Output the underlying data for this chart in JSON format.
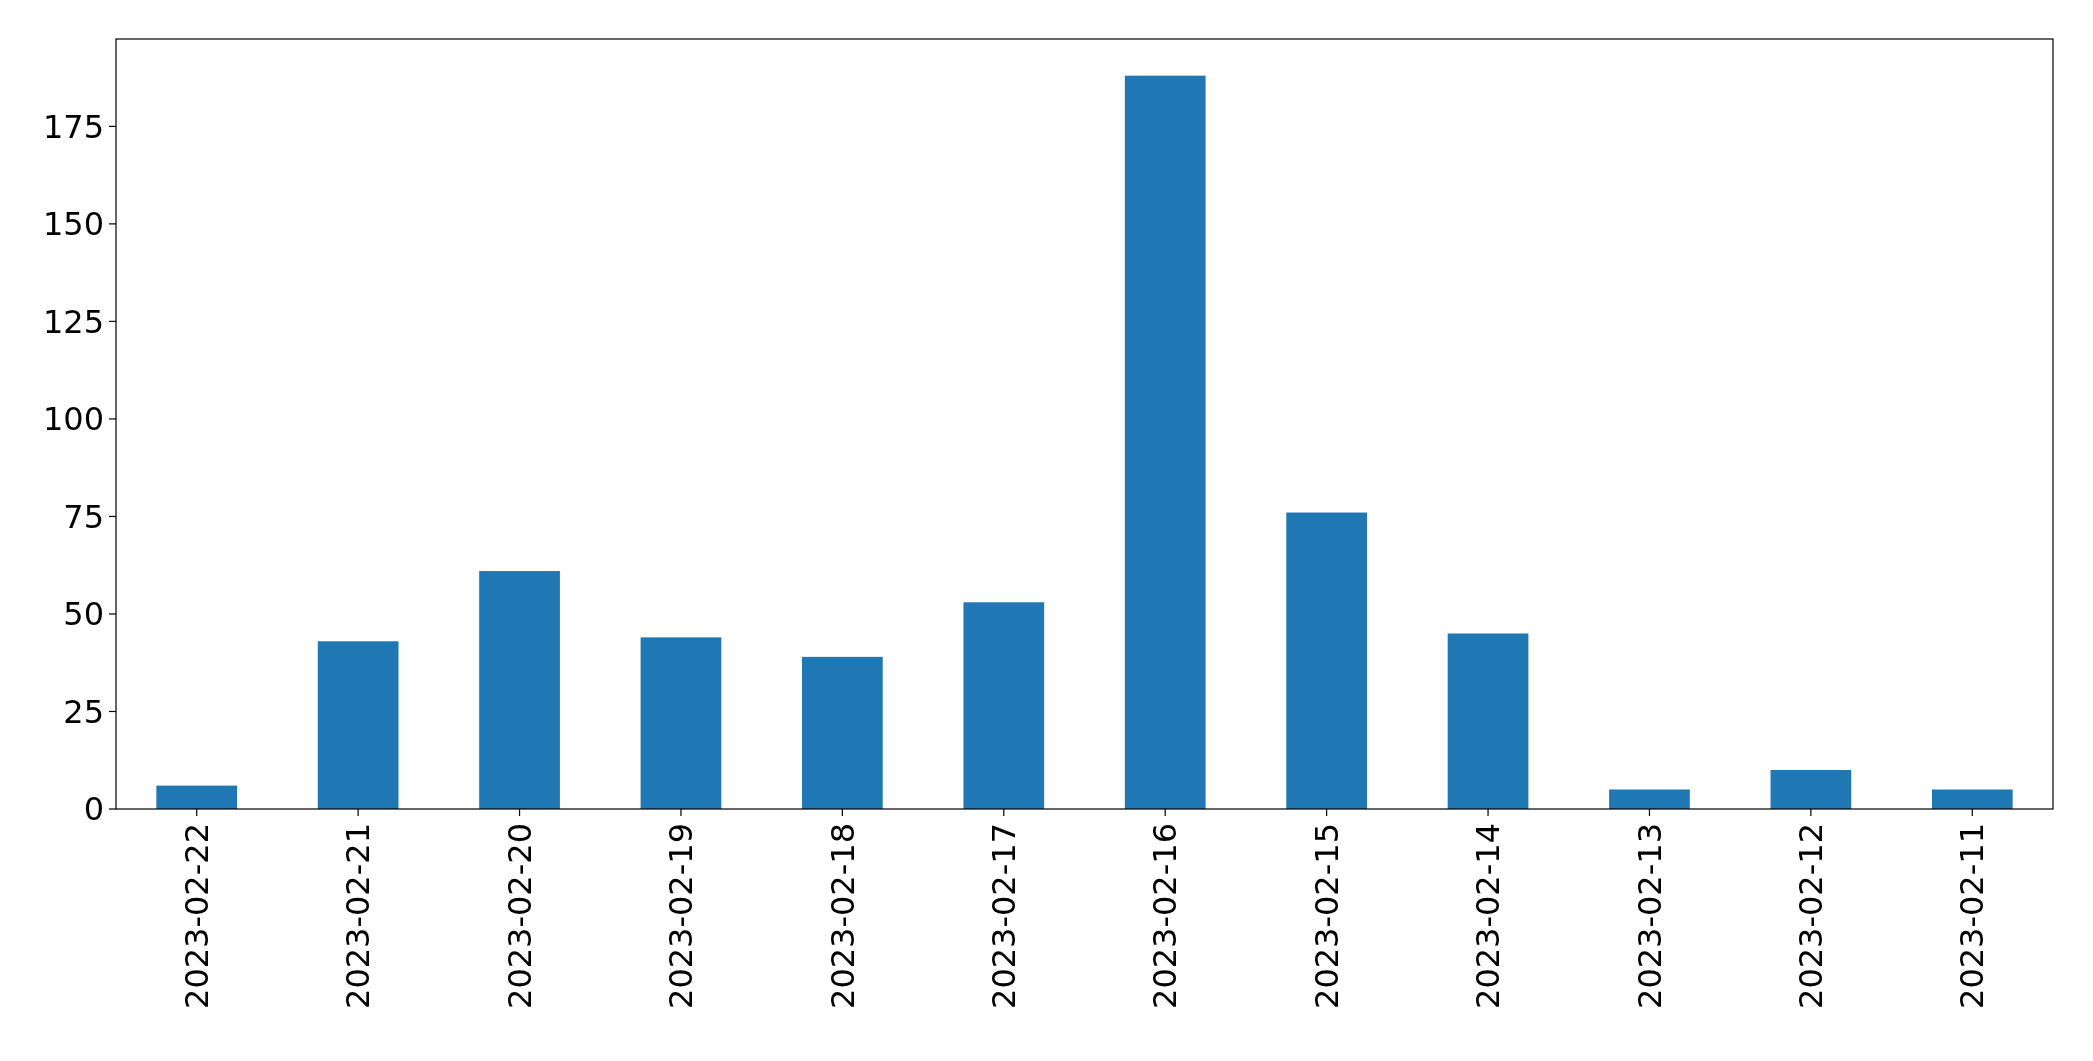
{
  "chart_data": {
    "type": "bar",
    "categories": [
      "2023-02-22",
      "2023-02-21",
      "2023-02-20",
      "2023-02-19",
      "2023-02-18",
      "2023-02-17",
      "2023-02-16",
      "2023-02-15",
      "2023-02-14",
      "2023-02-13",
      "2023-02-12",
      "2023-02-11"
    ],
    "values": [
      6,
      43,
      61,
      44,
      39,
      53,
      188,
      76,
      45,
      5,
      10,
      5
    ],
    "color": "#1f77b4",
    "ylim": [
      0,
      197.4
    ],
    "yticks": [
      0,
      25,
      50,
      75,
      100,
      125,
      150,
      175
    ]
  }
}
